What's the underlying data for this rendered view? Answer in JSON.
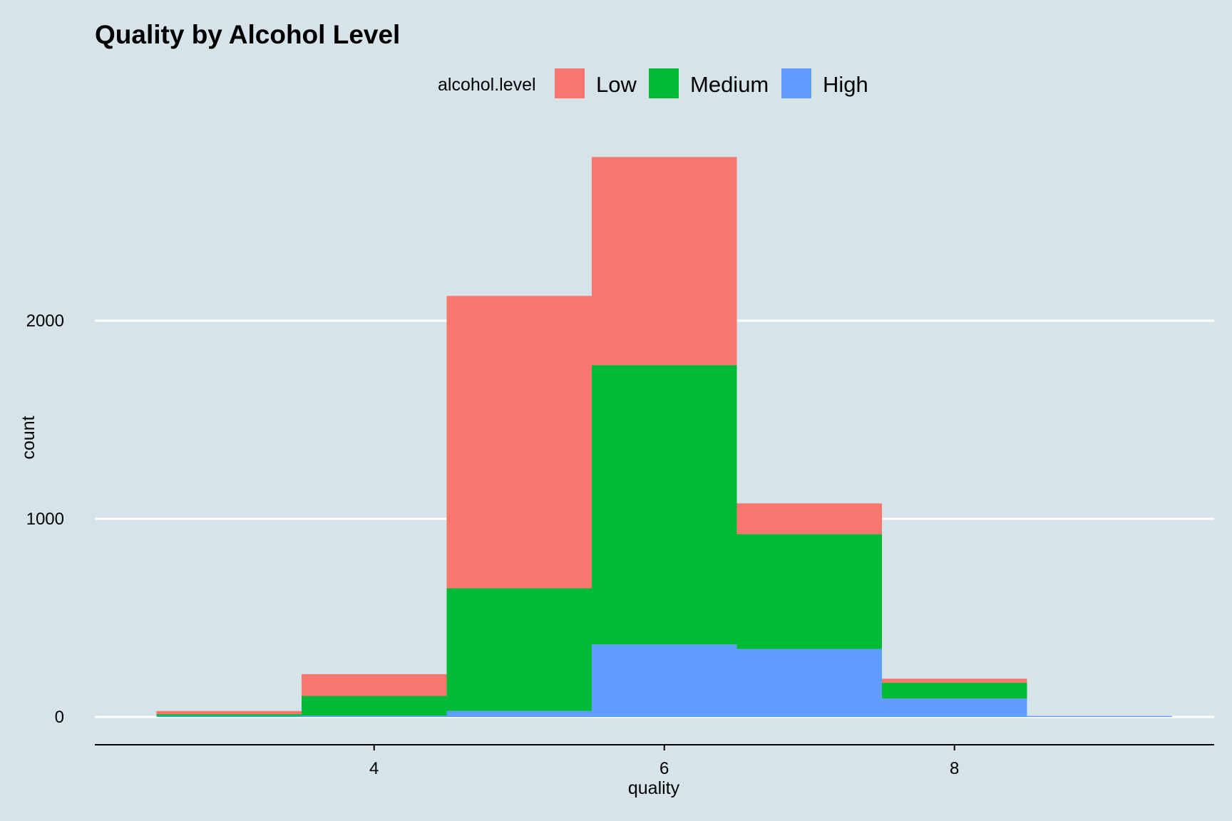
{
  "chart_data": {
    "type": "bar",
    "title": "Quality by Alcohol Level",
    "xlabel": "quality",
    "ylabel": "count",
    "xlim": [
      2.5,
      9.5
    ],
    "ylim": [
      0,
      2800
    ],
    "x_ticks": [
      4,
      6,
      8
    ],
    "y_ticks": [
      0,
      1000,
      2000
    ],
    "grid": "horizontal major",
    "legend": {
      "title": "alcohol.level",
      "position": "top"
    },
    "stacked": true,
    "categories": [
      3,
      4,
      5,
      6,
      7,
      8,
      9
    ],
    "series": [
      {
        "name": "Low",
        "color": "#f8766d",
        "values": [
          16,
          110,
          1475,
          1050,
          155,
          20,
          0
        ]
      },
      {
        "name": "Medium",
        "color": "#00ba38",
        "values": [
          10,
          100,
          620,
          1410,
          580,
          80,
          0
        ]
      },
      {
        "name": "High",
        "color": "#619cff",
        "values": [
          4,
          6,
          30,
          366,
          343,
          93,
          5
        ]
      }
    ]
  }
}
